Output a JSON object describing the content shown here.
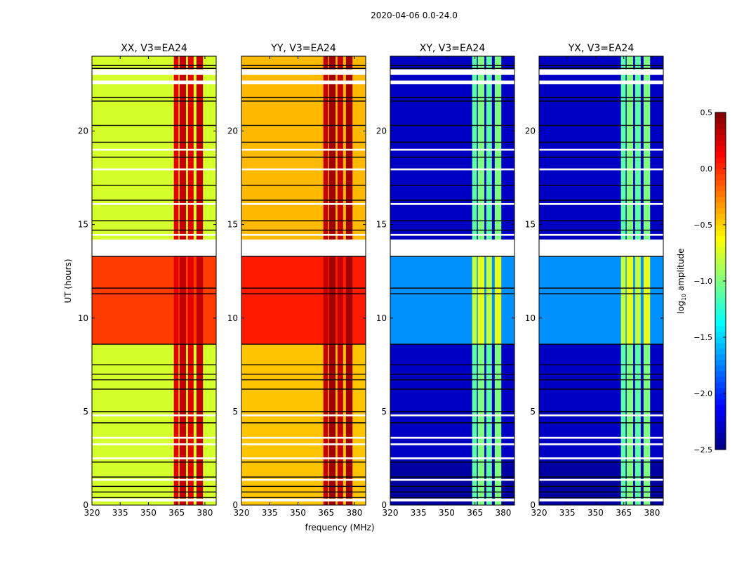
{
  "chart_data": {
    "type": "heatmap",
    "title": "2020-04-06 0.0-24.0",
    "xlabel": "frequency (MHz)",
    "ylabel": "UT (hours)",
    "xlim": [
      320,
      386
    ],
    "ylim": [
      0,
      24
    ],
    "xticks": [
      "320",
      "335",
      "350",
      "365",
      "380"
    ],
    "xtick_values": [
      320,
      335,
      350,
      365,
      380
    ],
    "yticks": [
      "0",
      "5",
      "10",
      "15",
      "20"
    ],
    "ytick_values": [
      0,
      5,
      10,
      15,
      20
    ],
    "colorbar": {
      "label_prefix": "log",
      "label_sub": "10",
      "label_suffix": " amplitude",
      "range": [
        -2.5,
        0.5
      ],
      "ticks": [
        "0.5",
        "0.0",
        "−0.5",
        "−1.0",
        "−1.5",
        "−2.0",
        "−2.5"
      ],
      "tick_values": [
        0.5,
        0.0,
        -0.5,
        -1.0,
        -1.5,
        -2.0,
        -2.5
      ],
      "colormap": "jet"
    },
    "rfi_bands_mhz": [
      [
        363.5,
        366
      ],
      [
        366.5,
        370
      ],
      [
        371,
        374
      ],
      [
        375.5,
        379
      ]
    ],
    "flagged_white_hours": [
      [
        0.2,
        0.35
      ],
      [
        1.3,
        1.4
      ],
      [
        2.45,
        2.55
      ],
      [
        3.2,
        3.3
      ],
      [
        3.55,
        3.65
      ],
      [
        4.75,
        4.85
      ],
      [
        13.3,
        14.2
      ],
      [
        14.4,
        14.5
      ],
      [
        16.05,
        16.15
      ],
      [
        17.9,
        18.0
      ],
      [
        18.95,
        19.05
      ],
      [
        22.5,
        22.7
      ],
      [
        23.0,
        23.3
      ]
    ],
    "flag_black_hours": [
      0.4,
      0.7,
      1.0,
      1.5,
      2.3,
      4.4,
      5.0,
      6.2,
      6.7,
      7.0,
      7.5,
      8.6,
      11.3,
      11.6,
      13.3,
      14.7,
      15.2,
      16.3,
      17.1,
      18.6,
      19.4,
      20.3,
      21.6,
      21.8,
      23.35,
      23.5
    ],
    "panels": [
      {
        "title": "XX, V3=EA24",
        "segments": [
          {
            "hours": [
              0,
              8.6
            ],
            "value": -0.75
          },
          {
            "hours": [
              8.6,
              13.3
            ],
            "value": -0.05
          },
          {
            "hours": [
              13.3,
              24
            ],
            "value": -0.75
          }
        ],
        "rfi_value": 0.2
      },
      {
        "title": "YY, V3=EA24",
        "segments": [
          {
            "hours": [
              0,
              8.6
            ],
            "value": -0.45
          },
          {
            "hours": [
              8.6,
              13.3
            ],
            "value": 0.05
          },
          {
            "hours": [
              13.3,
              24
            ],
            "value": -0.42
          }
        ],
        "rfi_value": 0.3
      },
      {
        "title": "XY, V3=EA24",
        "segments": [
          {
            "hours": [
              0,
              2.3
            ],
            "value": -2.4
          },
          {
            "hours": [
              2.3,
              8.6
            ],
            "value": -2.3
          },
          {
            "hours": [
              8.6,
              13.3
            ],
            "value": -1.7
          },
          {
            "hours": [
              13.3,
              24
            ],
            "value": -2.3
          }
        ],
        "rfi_value": -1.1
      },
      {
        "title": "YX, V3=EA24",
        "segments": [
          {
            "hours": [
              0,
              2.3
            ],
            "value": -2.4
          },
          {
            "hours": [
              2.3,
              8.6
            ],
            "value": -2.3
          },
          {
            "hours": [
              8.6,
              13.3
            ],
            "value": -1.7
          },
          {
            "hours": [
              13.3,
              24
            ],
            "value": -2.3
          }
        ],
        "rfi_value": -1.1
      }
    ]
  }
}
